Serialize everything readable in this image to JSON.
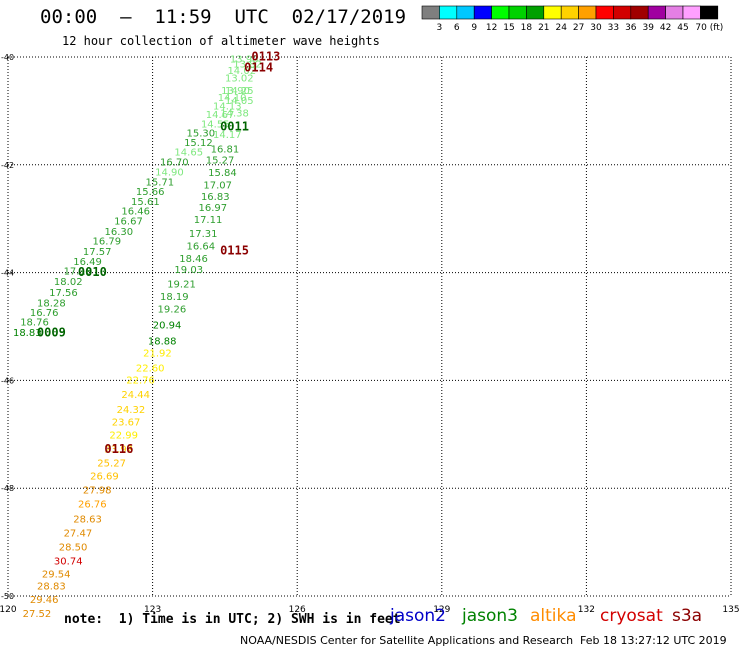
{
  "header": {
    "title": "00:00  –  11:59  UTC  02/17/2019",
    "subtitle": "12 hour collection of altimeter wave heights"
  },
  "colorbar": {
    "boxes": [
      "#7f7f7f",
      "#00ffff",
      "#00c8ff",
      "#0000ff",
      "#00ff00",
      "#00d200",
      "#00a000",
      "#ffff00",
      "#ffd200",
      "#ffa000",
      "#ff0000",
      "#d20000",
      "#a00000",
      "#a000a0",
      "#e47fe4",
      "#ffa0ff",
      "#000000"
    ],
    "labels": [
      "3",
      "6",
      "9",
      "12",
      "15",
      "18",
      "21",
      "24",
      "27",
      "30",
      "33",
      "36",
      "39",
      "42",
      "45",
      "70 (ft)"
    ]
  },
  "footer": {
    "note": "note:  1) Time is in UTC; 2) SWH is in feet",
    "credit": "NOAA/NESDIS Center for Satellite Applications and Research",
    "timestamp": "Feb 18 13:27:12 UTC 2019"
  },
  "satellites": [
    {
      "name": "jason2",
      "color": "#0000c8"
    },
    {
      "name": "jason3",
      "color": "#008200"
    },
    {
      "name": "altika",
      "color": "#ff8c00"
    },
    {
      "name": "cryosat",
      "color": "#d20000"
    },
    {
      "name": "s3a",
      "color": "#8b0000"
    }
  ],
  "chart_data": {
    "type": "scatter",
    "xlim": [
      120,
      135
    ],
    "ylim": [
      -50,
      -40
    ],
    "x_ticks": [
      "120",
      "123",
      "126",
      "129",
      "132",
      "135"
    ],
    "y_ticks": [
      "-40",
      "-42",
      "-44",
      "-46",
      "-48",
      "-50"
    ],
    "grid": true,
    "points": [
      {
        "lon": 124.9,
        "lat": -40.05,
        "label": "13.90",
        "color": "#7ee87e"
      },
      {
        "lon": 124.97,
        "lat": -40.14,
        "label": "13.82",
        "color": "#7ee87e"
      },
      {
        "lon": 124.85,
        "lat": -40.26,
        "label": "14.02",
        "color": "#7ee87e"
      },
      {
        "lon": 124.8,
        "lat": -40.4,
        "label": "13.02",
        "color": "#7ee87e"
      },
      {
        "lon": 124.72,
        "lat": -40.63,
        "label": "13.90",
        "color": "#7ee87e"
      },
      {
        "lon": 124.8,
        "lat": -40.63,
        "label": "14.25",
        "color": "#7ee87e"
      },
      {
        "lon": 124.65,
        "lat": -40.76,
        "label": "14.10",
        "color": "#7ee87e"
      },
      {
        "lon": 124.8,
        "lat": -40.82,
        "label": "14.05",
        "color": "#7ee87e"
      },
      {
        "lon": 124.55,
        "lat": -40.92,
        "label": "14.13",
        "color": "#7ee87e"
      },
      {
        "lon": 124.4,
        "lat": -41.08,
        "label": "14.67",
        "color": "#7ee87e"
      },
      {
        "lon": 124.7,
        "lat": -41.05,
        "label": "14.38",
        "color": "#7ee87e"
      },
      {
        "lon": 124.3,
        "lat": -41.25,
        "label": "14.55",
        "color": "#7ee87e"
      },
      {
        "lon": 124.0,
        "lat": -41.42,
        "label": "15.30",
        "color": "#2e9e2e"
      },
      {
        "lon": 124.55,
        "lat": -41.45,
        "label": "14.17",
        "color": "#7ee87e"
      },
      {
        "lon": 123.95,
        "lat": -41.6,
        "label": "15.12",
        "color": "#2e9e2e"
      },
      {
        "lon": 123.75,
        "lat": -41.77,
        "label": "14.65",
        "color": "#7ee87e"
      },
      {
        "lon": 124.5,
        "lat": -41.72,
        "label": "16.81",
        "color": "#2e9e2e"
      },
      {
        "lon": 123.45,
        "lat": -41.96,
        "label": "16.70",
        "color": "#2e9e2e"
      },
      {
        "lon": 124.4,
        "lat": -41.92,
        "label": "15.27",
        "color": "#2e9e2e"
      },
      {
        "lon": 123.35,
        "lat": -42.14,
        "label": "14.90",
        "color": "#7ee87e"
      },
      {
        "lon": 124.45,
        "lat": -42.15,
        "label": "15.84",
        "color": "#2e9e2e"
      },
      {
        "lon": 123.15,
        "lat": -42.33,
        "label": "15.71",
        "color": "#2e9e2e"
      },
      {
        "lon": 124.35,
        "lat": -42.38,
        "label": "17.07",
        "color": "#2e9e2e"
      },
      {
        "lon": 122.95,
        "lat": -42.5,
        "label": "15.66",
        "color": "#2e9e2e"
      },
      {
        "lon": 124.3,
        "lat": -42.6,
        "label": "16.83",
        "color": "#2e9e2e"
      },
      {
        "lon": 122.85,
        "lat": -42.69,
        "label": "15.61",
        "color": "#2e9e2e"
      },
      {
        "lon": 124.25,
        "lat": -42.8,
        "label": "16.97",
        "color": "#2e9e2e"
      },
      {
        "lon": 122.65,
        "lat": -42.87,
        "label": "16.46",
        "color": "#2e9e2e"
      },
      {
        "lon": 124.15,
        "lat": -43.02,
        "label": "17.11",
        "color": "#2e9e2e"
      },
      {
        "lon": 122.5,
        "lat": -43.05,
        "label": "16.67",
        "color": "#2e9e2e"
      },
      {
        "lon": 122.3,
        "lat": -43.25,
        "label": "16.30",
        "color": "#2e9e2e"
      },
      {
        "lon": 124.05,
        "lat": -43.28,
        "label": "17.31",
        "color": "#2e9e2e"
      },
      {
        "lon": 122.05,
        "lat": -43.42,
        "label": "16.79",
        "color": "#2e9e2e"
      },
      {
        "lon": 124.0,
        "lat": -43.52,
        "label": "16.64",
        "color": "#2e9e2e"
      },
      {
        "lon": 121.85,
        "lat": -43.62,
        "label": "17.57",
        "color": "#2e9e2e"
      },
      {
        "lon": 123.85,
        "lat": -43.75,
        "label": "18.46",
        "color": "#2e9e2e"
      },
      {
        "lon": 121.65,
        "lat": -43.8,
        "label": "16.49",
        "color": "#2e9e2e"
      },
      {
        "lon": 121.45,
        "lat": -43.98,
        "label": "17.18",
        "color": "#2e9e2e"
      },
      {
        "lon": 123.75,
        "lat": -43.95,
        "label": "19.03",
        "color": "#2e9e2e"
      },
      {
        "lon": 121.25,
        "lat": -44.17,
        "label": "18.02",
        "color": "#2e9e2e"
      },
      {
        "lon": 123.6,
        "lat": -44.22,
        "label": "19.21",
        "color": "#2e9e2e"
      },
      {
        "lon": 121.15,
        "lat": -44.38,
        "label": "17.56",
        "color": "#2e9e2e"
      },
      {
        "lon": 123.45,
        "lat": -44.45,
        "label": "18.19",
        "color": "#2e9e2e"
      },
      {
        "lon": 120.9,
        "lat": -44.57,
        "label": "18.28",
        "color": "#2e9e2e"
      },
      {
        "lon": 123.4,
        "lat": -44.68,
        "label": "19.26",
        "color": "#2e9e2e"
      },
      {
        "lon": 120.75,
        "lat": -44.75,
        "label": "16.76",
        "color": "#2e9e2e"
      },
      {
        "lon": 120.55,
        "lat": -44.93,
        "label": "18.76",
        "color": "#2e9e2e"
      },
      {
        "lon": 123.3,
        "lat": -44.98,
        "label": "20.94",
        "color": "#008200"
      },
      {
        "lon": 120.4,
        "lat": -45.12,
        "label": "18.83",
        "color": "#008200"
      },
      {
        "lon": 123.2,
        "lat": -45.28,
        "label": "18.88",
        "color": "#008200"
      },
      {
        "lon": 123.1,
        "lat": -45.5,
        "label": "21.92",
        "color": "#ffee00"
      },
      {
        "lon": 122.95,
        "lat": -45.78,
        "label": "22.60",
        "color": "#ffee00"
      },
      {
        "lon": 122.75,
        "lat": -46.0,
        "label": "22.76",
        "color": "#ffee00"
      },
      {
        "lon": 122.65,
        "lat": -46.27,
        "label": "24.44",
        "color": "#ffd200"
      },
      {
        "lon": 122.55,
        "lat": -46.55,
        "label": "24.32",
        "color": "#ffd200"
      },
      {
        "lon": 122.45,
        "lat": -46.78,
        "label": "23.67",
        "color": "#ffd200"
      },
      {
        "lon": 122.4,
        "lat": -47.02,
        "label": "22.99",
        "color": "#ffee00"
      },
      {
        "lon": 122.3,
        "lat": -47.28,
        "label": "23.92",
        "color": "#ffd200"
      },
      {
        "lon": 122.15,
        "lat": -47.54,
        "label": "25.27",
        "color": "#ffc000"
      },
      {
        "lon": 122.0,
        "lat": -47.78,
        "label": "26.69",
        "color": "#ffc000"
      },
      {
        "lon": 121.85,
        "lat": -48.04,
        "label": "27.98",
        "color": "#e08a00"
      },
      {
        "lon": 121.75,
        "lat": -48.3,
        "label": "26.76",
        "color": "#ffa000"
      },
      {
        "lon": 121.65,
        "lat": -48.58,
        "label": "28.63",
        "color": "#e08a00"
      },
      {
        "lon": 121.45,
        "lat": -48.84,
        "label": "27.47",
        "color": "#e08a00"
      },
      {
        "lon": 121.35,
        "lat": -49.1,
        "label": "28.50",
        "color": "#e08a00"
      },
      {
        "lon": 121.25,
        "lat": -49.36,
        "label": "30.74",
        "color": "#d20000"
      },
      {
        "lon": 121.0,
        "lat": -49.6,
        "label": "29.54",
        "color": "#e08a00"
      },
      {
        "lon": 120.9,
        "lat": -49.82,
        "label": "28.83",
        "color": "#e08a00"
      },
      {
        "lon": 120.75,
        "lat": -50.07,
        "label": "29.46",
        "color": "#e08a00"
      },
      {
        "lon": 120.6,
        "lat": -50.33,
        "label": "27.52",
        "color": "#e08a00"
      }
    ],
    "times": [
      {
        "lon": 125.35,
        "lat": -40.0,
        "label": "0113",
        "color": "#8b0000"
      },
      {
        "lon": 125.2,
        "lat": -40.2,
        "label": "0114",
        "color": "#8b0000"
      },
      {
        "lon": 124.7,
        "lat": -41.3,
        "label": "0011",
        "color": "#006400"
      },
      {
        "lon": 124.7,
        "lat": -43.6,
        "label": "0115",
        "color": "#8b0000"
      },
      {
        "lon": 121.75,
        "lat": -44.0,
        "label": "0010",
        "color": "#006400"
      },
      {
        "lon": 120.9,
        "lat": -45.12,
        "label": "0009",
        "color": "#006400"
      },
      {
        "lon": 122.3,
        "lat": -47.28,
        "label": "0116",
        "color": "#8b0000"
      }
    ]
  }
}
